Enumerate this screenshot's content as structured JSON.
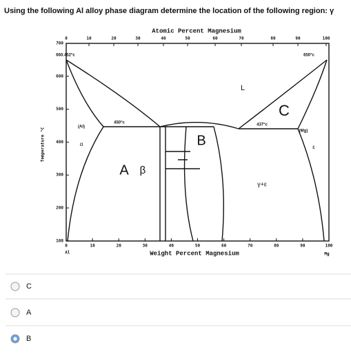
{
  "question": "Using the following Al alloy phase diagram determine the location of the following region: γ",
  "diagram": {
    "top_axis_title": "Atomic Percent Magnesium",
    "top_ticks": [
      0,
      10,
      20,
      30,
      40,
      50,
      60,
      70,
      80,
      90,
      100
    ],
    "bottom_ticks": [
      0,
      10,
      20,
      30,
      40,
      50,
      60,
      70,
      80,
      90,
      100
    ],
    "left_ticks": [
      700,
      600,
      500,
      400,
      300,
      200,
      100
    ],
    "y_axis_title": "Temperature °C",
    "x_axis_title": "Weight Percent Magnesium",
    "left_end": "Al",
    "right_end": "Mg",
    "annotations": [
      "660.452°c",
      "650°c",
      "450°c",
      "437°c",
      "(Al)",
      "(Mg)",
      "α",
      "ε",
      "L",
      "γ+ε",
      "A",
      "β",
      "B",
      "C"
    ]
  },
  "options": [
    {
      "label": "C",
      "selected": false
    },
    {
      "label": "A",
      "selected": false
    },
    {
      "label": "B",
      "selected": true
    }
  ]
}
